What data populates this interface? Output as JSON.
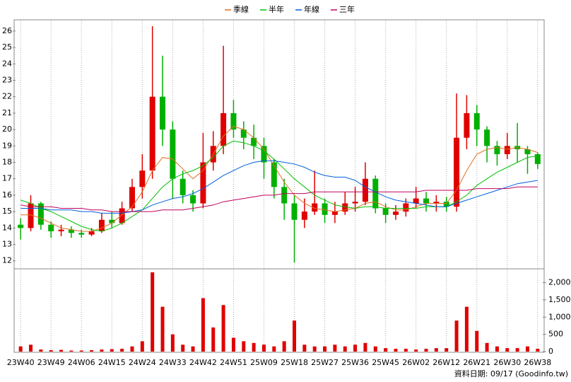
{
  "chart_data": [
    {
      "type": "candlestick",
      "up_color": "#e00000",
      "down_color": "#00b000",
      "open": [
        14.2,
        14.0,
        15.5,
        14.2,
        13.8,
        13.9,
        13.7,
        13.6,
        13.8,
        14.5,
        14.3,
        15.2,
        16.5,
        17.5,
        22.0,
        20.0,
        17.0,
        16.0,
        15.5,
        18.0,
        19.0,
        21.0,
        20.0,
        19.5,
        19.0,
        18.0,
        16.5,
        15.5,
        14.5,
        15.0,
        15.5,
        14.8,
        15.0,
        15.5,
        15.6,
        17.0,
        15.2,
        14.8,
        15.0,
        15.5,
        15.8,
        15.5,
        15.6,
        15.3,
        19.5,
        21.0,
        20.0,
        19.0,
        18.5,
        19.0,
        18.8,
        18.5
      ],
      "high": [
        14.6,
        16.0,
        15.6,
        14.4,
        14.2,
        14.1,
        13.9,
        14.0,
        14.9,
        15.0,
        15.6,
        17.0,
        18.5,
        26.3,
        24.5,
        20.5,
        17.5,
        16.3,
        19.8,
        19.9,
        25.1,
        21.8,
        20.5,
        20.3,
        19.5,
        18.2,
        17.0,
        16.0,
        15.8,
        17.5,
        15.8,
        15.6,
        16.2,
        16.5,
        18.0,
        17.2,
        15.5,
        15.4,
        15.8,
        16.5,
        16.2,
        16.0,
        15.9,
        22.2,
        22.1,
        21.5,
        20.2,
        19.3,
        19.8,
        20.4,
        19.0,
        18.6
      ],
      "low": [
        13.3,
        13.8,
        13.9,
        13.4,
        13.5,
        13.4,
        13.4,
        13.5,
        13.7,
        14.0,
        14.2,
        15.0,
        15.8,
        17.0,
        19.0,
        15.8,
        15.5,
        15.0,
        15.2,
        17.5,
        18.5,
        19.5,
        18.8,
        18.2,
        17.0,
        15.8,
        14.5,
        11.9,
        14.0,
        14.8,
        14.3,
        14.3,
        14.8,
        15.0,
        15.4,
        14.9,
        14.3,
        14.5,
        14.7,
        15.2,
        15.0,
        15.0,
        15.0,
        15.0,
        18.8,
        19.0,
        18.0,
        17.8,
        18.2,
        18.0,
        17.3,
        17.6
      ],
      "close": [
        14.0,
        15.5,
        14.2,
        13.8,
        13.9,
        13.7,
        13.6,
        13.8,
        14.5,
        14.3,
        15.2,
        16.5,
        17.5,
        22.0,
        20.0,
        17.0,
        16.0,
        15.5,
        18.0,
        19.0,
        21.0,
        20.0,
        19.5,
        19.0,
        18.0,
        16.5,
        15.5,
        14.5,
        15.0,
        15.5,
        14.8,
        15.0,
        15.5,
        15.6,
        17.0,
        15.2,
        14.8,
        15.0,
        15.5,
        15.8,
        15.5,
        15.6,
        15.3,
        19.5,
        21.0,
        20.0,
        19.0,
        18.5,
        19.0,
        18.8,
        18.5,
        17.9
      ],
      "series": [
        {
          "name": "季線",
          "color": "#e07020",
          "values": [
            14.8,
            14.8,
            14.6,
            14.3,
            14.0,
            13.9,
            13.8,
            13.8,
            14.0,
            14.3,
            14.8,
            15.3,
            16.2,
            17.5,
            18.3,
            18.2,
            17.6,
            17.0,
            17.5,
            18.5,
            19.6,
            20.2,
            20.0,
            19.5,
            18.8,
            17.8,
            16.8,
            16.0,
            15.5,
            15.2,
            15.1,
            15.0,
            15.1,
            15.2,
            15.5,
            15.6,
            15.3,
            15.1,
            15.1,
            15.3,
            15.5,
            15.5,
            15.5,
            16.3,
            17.5,
            18.5,
            18.8,
            18.9,
            18.8,
            18.9,
            18.8,
            18.6
          ]
        },
        {
          "name": "半年",
          "color": "#00c000",
          "values": [
            15.7,
            15.5,
            15.2,
            15.0,
            14.7,
            14.4,
            14.1,
            13.9,
            13.8,
            14.0,
            14.3,
            14.7,
            15.1,
            15.8,
            16.5,
            17.0,
            17.3,
            17.5,
            17.8,
            18.3,
            19.0,
            19.3,
            19.2,
            19.0,
            18.7,
            18.2,
            17.6,
            17.0,
            16.5,
            16.0,
            15.7,
            15.4,
            15.3,
            15.2,
            15.3,
            15.3,
            15.2,
            15.2,
            15.2,
            15.2,
            15.3,
            15.3,
            15.3,
            15.6,
            16.0,
            16.6,
            17.0,
            17.4,
            17.7,
            18.0,
            18.3,
            18.4
          ]
        },
        {
          "name": "年線",
          "color": "#0060e0",
          "values": [
            15.2,
            15.2,
            15.2,
            15.1,
            15.1,
            15.1,
            15.0,
            15.0,
            14.9,
            14.9,
            14.9,
            15.0,
            15.1,
            15.4,
            15.6,
            15.8,
            15.9,
            16.1,
            16.4,
            16.8,
            17.2,
            17.5,
            17.8,
            18.0,
            18.1,
            18.1,
            18.0,
            17.9,
            17.7,
            17.4,
            17.2,
            17.1,
            17.1,
            16.9,
            16.5,
            16.2,
            15.9,
            15.7,
            15.6,
            15.5,
            15.4,
            15.3,
            15.3,
            15.5,
            15.7,
            15.9,
            16.1,
            16.3,
            16.5,
            16.7,
            16.8,
            16.9
          ]
        },
        {
          "name": "三年",
          "color": "#c00060",
          "values": [
            15.4,
            15.3,
            15.3,
            15.3,
            15.2,
            15.2,
            15.2,
            15.1,
            15.1,
            15.0,
            15.0,
            15.0,
            15.0,
            15.0,
            15.1,
            15.1,
            15.1,
            15.2,
            15.3,
            15.4,
            15.6,
            15.7,
            15.8,
            15.9,
            16.0,
            16.0,
            16.1,
            16.1,
            16.1,
            16.2,
            16.2,
            16.2,
            16.2,
            16.2,
            16.2,
            16.2,
            16.2,
            16.2,
            16.2,
            16.2,
            16.3,
            16.3,
            16.3,
            16.3,
            16.3,
            16.4,
            16.4,
            16.4,
            16.4,
            16.5,
            16.5,
            16.5
          ]
        }
      ],
      "ylim": [
        11.6,
        26.6
      ],
      "yticks": [
        12,
        13,
        14,
        15,
        16,
        17,
        18,
        19,
        20,
        21,
        22,
        23,
        24,
        25,
        26
      ],
      "grid": "x"
    },
    {
      "type": "bar",
      "color": "#e00000",
      "categories": [
        "23W40",
        null,
        null,
        "23W49",
        null,
        null,
        "24W06",
        null,
        null,
        "24W15",
        null,
        null,
        "24W24",
        null,
        null,
        "24W33",
        null,
        null,
        "24W42",
        null,
        null,
        "24W51",
        null,
        null,
        "25W09",
        null,
        null,
        "25W18",
        null,
        null,
        "25W27",
        null,
        null,
        "25W36",
        null,
        null,
        "25W45",
        null,
        null,
        "26W02",
        null,
        null,
        "26W12",
        null,
        null,
        "26W21",
        null,
        null,
        "26W30",
        null,
        null,
        "26W38"
      ],
      "values": [
        150,
        200,
        60,
        40,
        50,
        30,
        30,
        40,
        60,
        70,
        80,
        150,
        300,
        2300,
        1300,
        500,
        200,
        150,
        1550,
        700,
        1350,
        400,
        300,
        250,
        200,
        150,
        300,
        900,
        200,
        150,
        150,
        200,
        150,
        200,
        250,
        150,
        100,
        80,
        80,
        60,
        80,
        100,
        100,
        900,
        1300,
        600,
        250,
        150,
        100,
        100,
        150,
        80
      ],
      "ylim": [
        0,
        2360
      ],
      "yticks": [
        0,
        500,
        {
          "value": 1000,
          "label": "1,000"
        },
        {
          "value": 1500,
          "label": "1,500"
        },
        {
          "value": 2000,
          "label": "2,000"
        }
      ]
    }
  ],
  "footer": "資料日期: 09/17 (Goodinfo.tw)"
}
